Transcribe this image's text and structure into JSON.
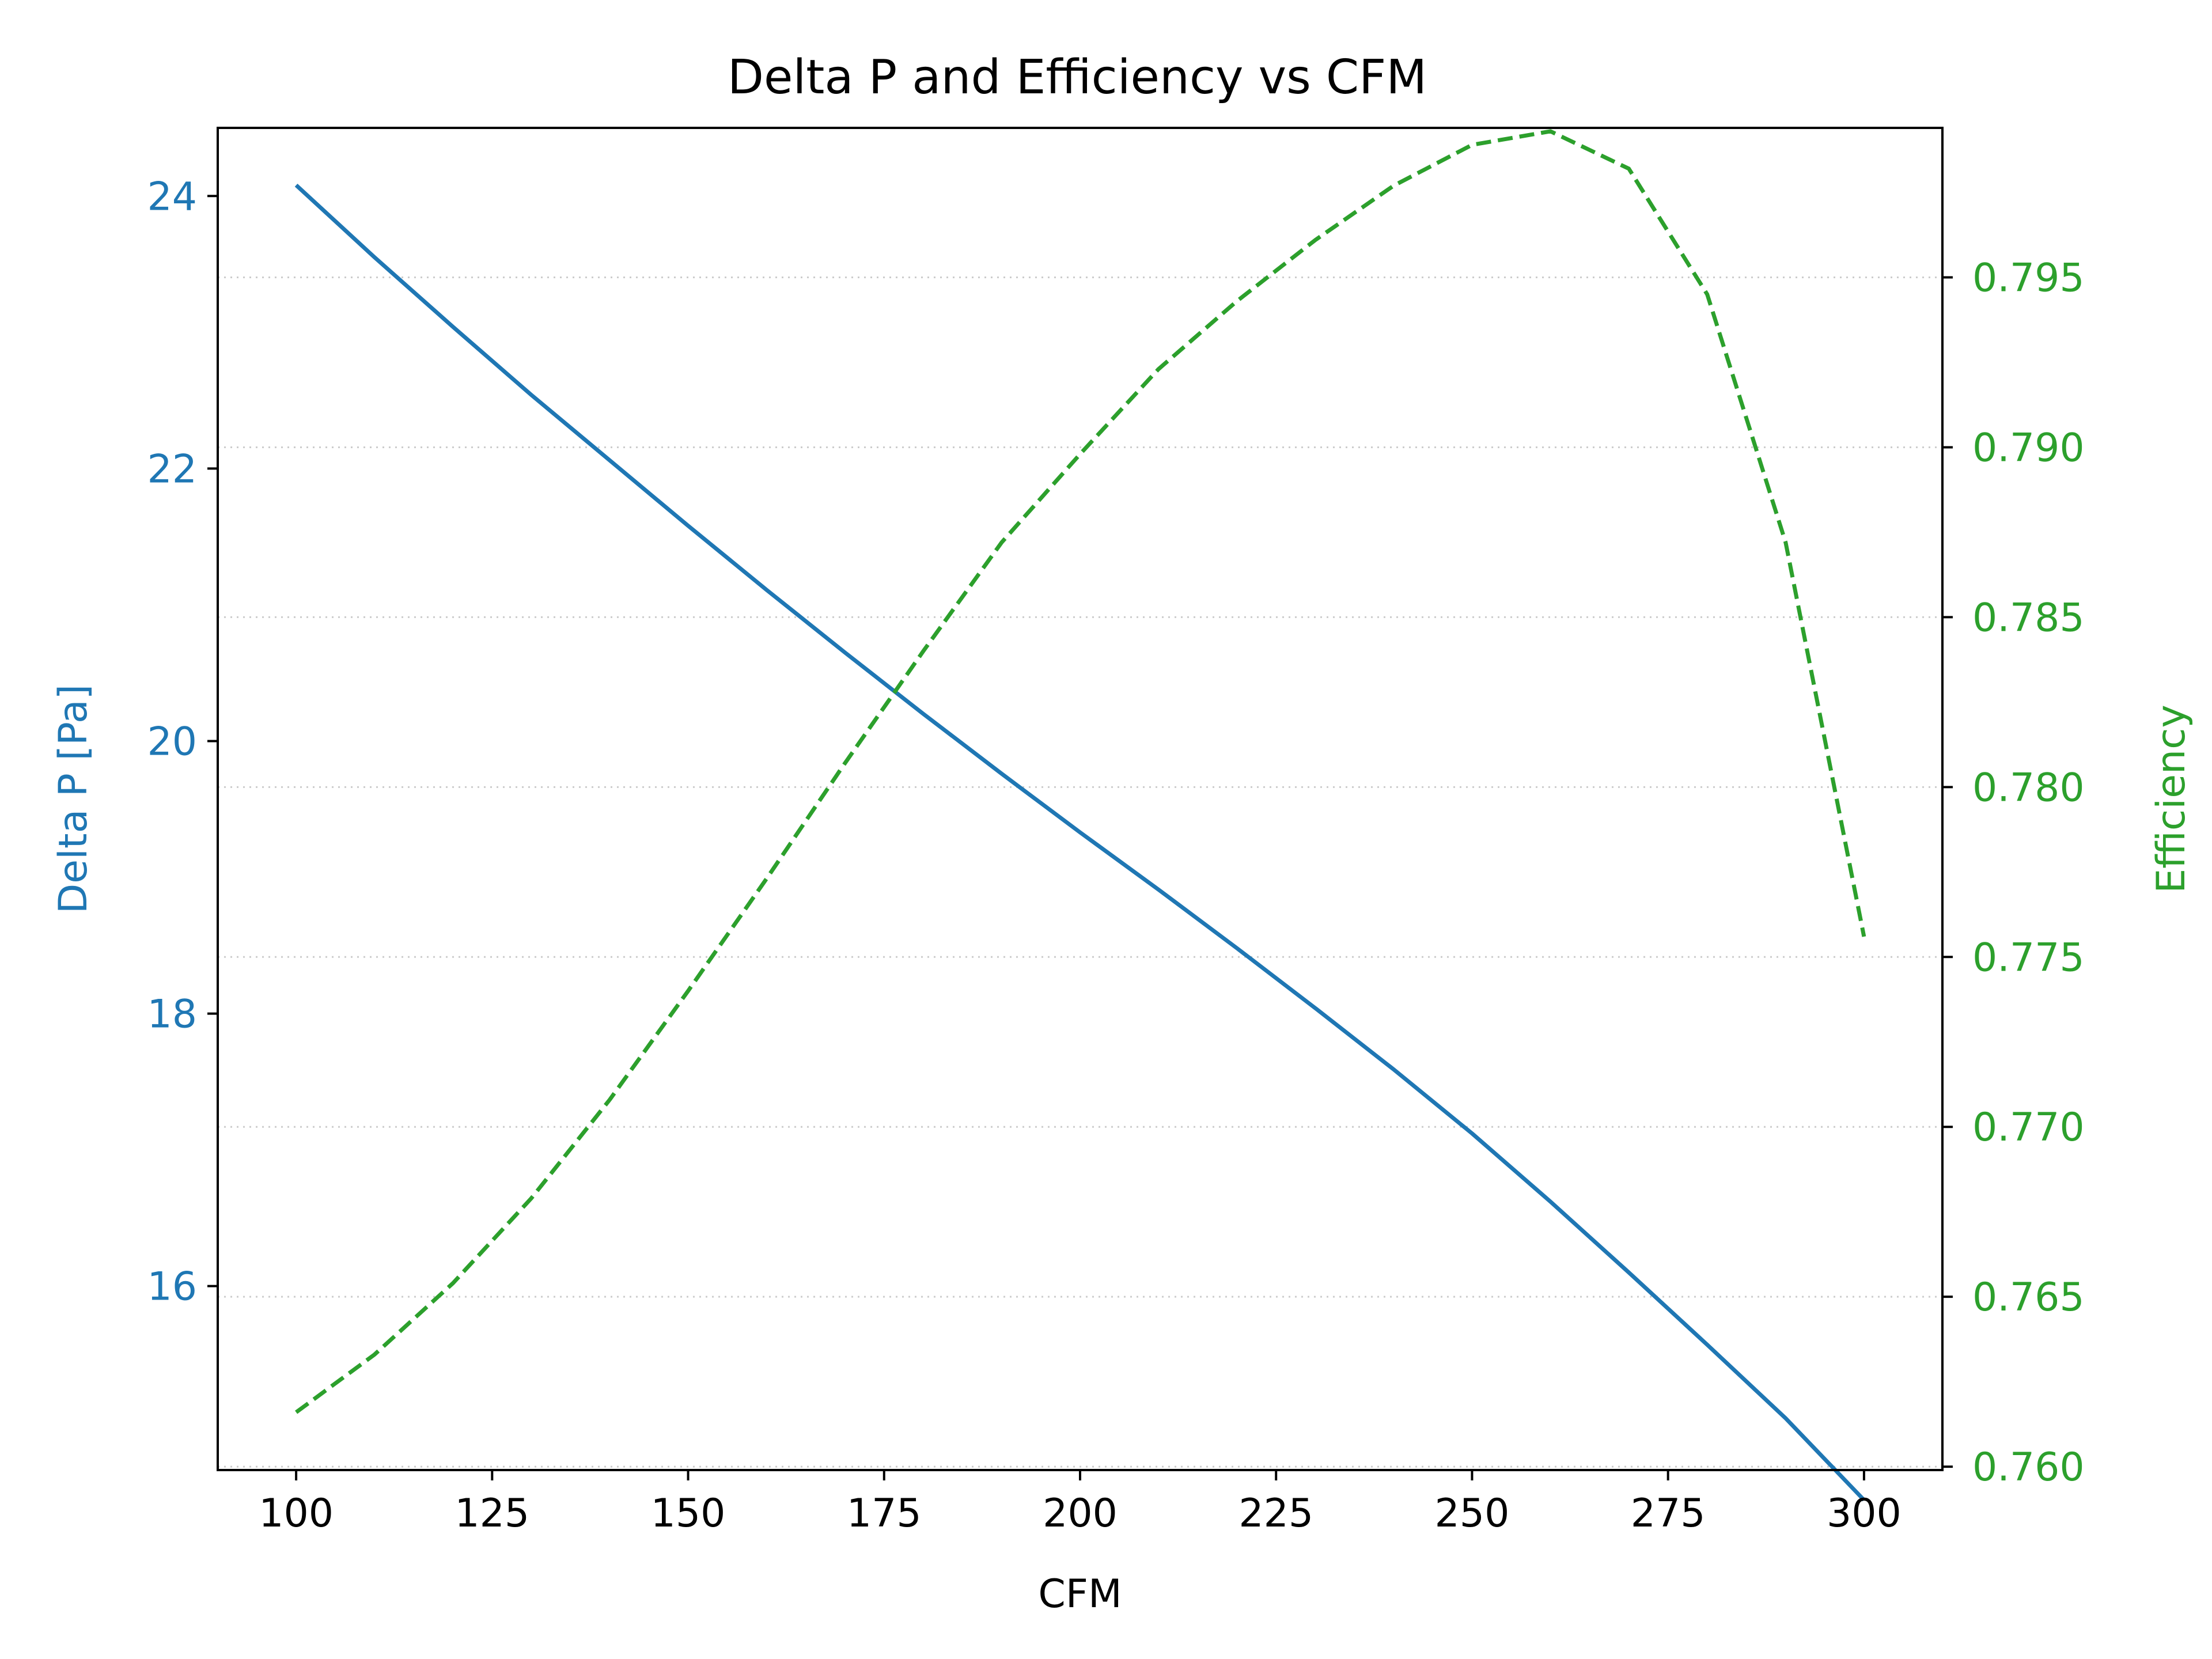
{
  "chart_data": {
    "type": "line",
    "title": "Delta P and Efficiency vs CFM",
    "xlabel": "CFM",
    "ylabel_left": "Delta P [Pa]",
    "ylabel_right": "Efficiency",
    "xlim": [
      90,
      310
    ],
    "ylim_left": [
      14.65,
      24.5
    ],
    "ylim_right": [
      0.7599,
      0.7994
    ],
    "x_ticks": [
      100,
      125,
      150,
      175,
      200,
      225,
      250,
      275,
      300
    ],
    "y_left_ticks": [
      16,
      18,
      20,
      22,
      24
    ],
    "y_right_ticks": [
      0.76,
      0.765,
      0.77,
      0.775,
      0.78,
      0.785,
      0.79,
      0.795
    ],
    "y_right_tick_labels": [
      "0.760",
      "0.765",
      "0.770",
      "0.775",
      "0.780",
      "0.785",
      "0.790",
      "0.795"
    ],
    "grid": "dotted horizontal at right-axis ticks",
    "series": [
      {
        "name": "Delta P",
        "axis": "left",
        "color": "#1f77b4",
        "linestyle": "solid",
        "x": [
          100,
          110,
          120,
          130,
          140,
          150,
          160,
          170,
          180,
          190,
          200,
          210,
          220,
          230,
          240,
          250,
          260,
          270,
          280,
          290,
          300
        ],
        "values": [
          24.08,
          23.55,
          23.04,
          22.54,
          22.06,
          21.58,
          21.11,
          20.65,
          20.2,
          19.76,
          19.33,
          18.91,
          18.48,
          18.04,
          17.59,
          17.12,
          16.62,
          16.1,
          15.57,
          15.03,
          14.43
        ]
      },
      {
        "name": "Efficiency",
        "axis": "right",
        "color": "#2ca02c",
        "linestyle": "dashed",
        "x": [
          100,
          110,
          120,
          130,
          140,
          150,
          160,
          170,
          180,
          190,
          200,
          210,
          220,
          230,
          240,
          250,
          260,
          270,
          280,
          290,
          300
        ],
        "values": [
          0.7616,
          0.7633,
          0.7654,
          0.7679,
          0.7708,
          0.774,
          0.7773,
          0.7807,
          0.784,
          0.7872,
          0.7898,
          0.7923,
          0.7943,
          0.7961,
          0.7977,
          0.7989,
          0.7993,
          0.7982,
          0.7945,
          0.7872,
          0.7756
        ]
      }
    ]
  },
  "colors": {
    "left_axis": "#1f77b4",
    "right_axis": "#2ca02c",
    "grid": "#cccccc",
    "text": "#000000"
  }
}
